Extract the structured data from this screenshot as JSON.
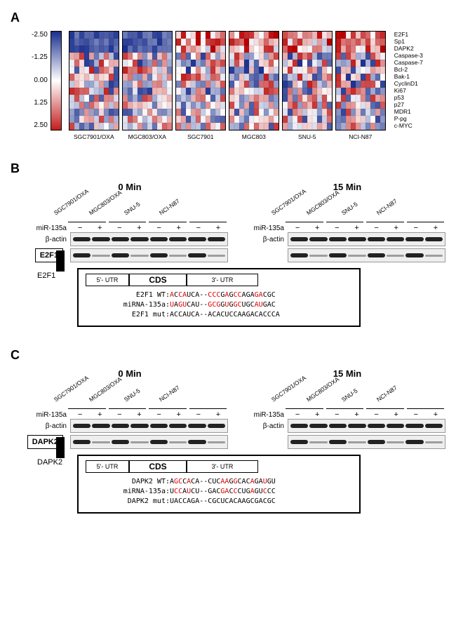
{
  "panelA": {
    "label": "A",
    "colorbar": {
      "ticks": [
        "-2.50",
        "-1.25",
        "0.00",
        "1.25",
        "2.50"
      ],
      "gradient_top": "#1a2f8f",
      "gradient_mid": "#ffffff",
      "gradient_bot": "#c41e1e"
    },
    "genes": [
      "E2F1",
      "Sp1",
      "DAPK2",
      "Caspase-3",
      "Caspase-7",
      "Bcl-2",
      "Bak-1",
      "CyclinD1",
      "Ki67",
      "p53",
      "p27",
      "MDR1",
      "P-pg",
      "c-MYC"
    ],
    "samples": [
      "SGC7901/OXA",
      "MGC803/OXA",
      "SGC7901",
      "MGC803",
      "SNU-5",
      "NCI-N87"
    ],
    "cols_per_block": 10,
    "seeds": [
      11,
      22,
      33,
      44,
      55,
      66
    ]
  },
  "panelB": {
    "label": "B",
    "times": [
      "0 Min",
      "15 Min"
    ],
    "cell_lines": [
      "SGC7901/OXA",
      "MGC803/OXA",
      "SNU-5",
      "NCI-N87"
    ],
    "treat_label": "miR-135a",
    "treat_levels": [
      "−",
      "+",
      "−",
      "+",
      "−",
      "+",
      "−",
      "+"
    ],
    "loading": "β-actin",
    "target": "E2F1",
    "diagram": {
      "gene": "E2F1",
      "utr5": "5'- UTR",
      "cds": "CDS",
      "utr3": "3'- UTR",
      "wt": {
        "label": "E2F1 WT:",
        "seq": "ACCAUCA--CCCGAGCCAGAGACGC",
        "red_idx": [
          0,
          2,
          3,
          9,
          10,
          11,
          13,
          15,
          16,
          20,
          21
        ]
      },
      "mir": {
        "label": "miRNA-135a:",
        "seq": "UAGUCAU--GCGGUGGCUGCAUGAC",
        "red_idx": [
          0,
          2,
          3,
          9,
          10,
          11,
          13,
          15,
          16,
          20,
          21
        ]
      },
      "mut": {
        "label": "E2F1 mut:",
        "seq": "ACCAUCA--ACACUCCAAGACACCCA",
        "red_idx": []
      }
    }
  },
  "panelC": {
    "label": "C",
    "times": [
      "0 Min",
      "15 Min"
    ],
    "cell_lines": [
      "SGC7901/OXA",
      "MGC803/OXA",
      "SNU-5",
      "NCI-N87"
    ],
    "treat_label": "miR-135a",
    "treat_levels": [
      "−",
      "+",
      "−",
      "+",
      "−",
      "+",
      "−",
      "+"
    ],
    "loading": "β-actin",
    "target": "DAPK2",
    "diagram": {
      "gene": "DAPK2",
      "utr5": "5'- UTR",
      "cds": "CDS",
      "utr3": "3'- UTR",
      "wt": {
        "label": "DAPK2 WT:",
        "seq": "AGCCACA--CUCAAGGCACAGAUGU",
        "red_idx": [
          1,
          2,
          4,
          12,
          13,
          15,
          19,
          22
        ]
      },
      "mir": {
        "label": "miRNA-135a:",
        "seq": "UCCAUCU--GACGACCCUGAGUCCC",
        "red_idx": [
          1,
          2,
          4,
          12,
          13,
          15,
          19,
          22
        ]
      },
      "mut": {
        "label": "DAPK2 mut:",
        "seq": "UACCAGA--CGCUCACAAGCGACGC",
        "red_idx": []
      }
    }
  }
}
